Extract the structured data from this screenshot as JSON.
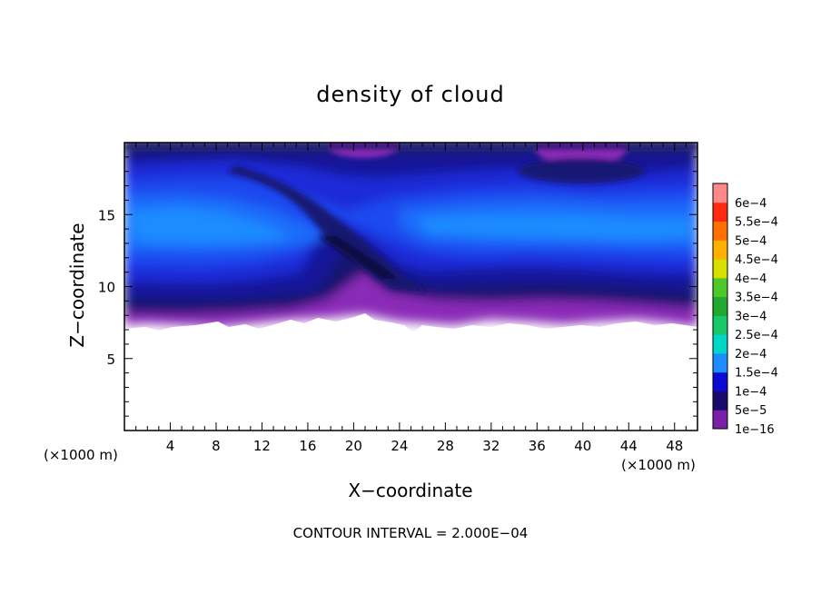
{
  "chart_data": {
    "type": "heatmap",
    "title": "density of cloud",
    "xlabel": "X−coordinate",
    "ylabel": "Z−coordinate",
    "x_unit": "(×1000 m)",
    "z_unit": "(×1000 m)",
    "xlim": [
      0,
      50
    ],
    "ylim": [
      0,
      20
    ],
    "x_ticks": [
      4,
      8,
      12,
      16,
      20,
      24,
      28,
      32,
      36,
      40,
      44,
      48
    ],
    "y_ticks": [
      5,
      10,
      15
    ],
    "colorbar": {
      "labels": [
        "1e−16",
        "5e−5",
        "1e−4",
        "1.5e−4",
        "2e−4",
        "2.5e−4",
        "3e−4",
        "3.5e−4",
        "4e−4",
        "4.5e−4",
        "5e−4",
        "5.5e−4",
        "6e−4"
      ],
      "colors": [
        "#7a1fa8",
        "#1a0a6e",
        "#0a0ad2",
        "#1e8cff",
        "#00d6c8",
        "#18c86a",
        "#20a830",
        "#4ec828",
        "#d8e000",
        "#ffb000",
        "#ff6e00",
        "#ff2810",
        "#ff8888"
      ]
    },
    "field_colors": [
      "#8a2ab8",
      "#14146e",
      "#14149a",
      "#1a2ad8",
      "#1c4af0",
      "#1e6cfa",
      "#1e8cff"
    ],
    "cloud_base_z_range": [
      7,
      8
    ],
    "max_value": "1.5e−4",
    "contour_interval": "2.000E−04",
    "footer": "CONTOUR INTERVAL = 2.000E−04"
  }
}
